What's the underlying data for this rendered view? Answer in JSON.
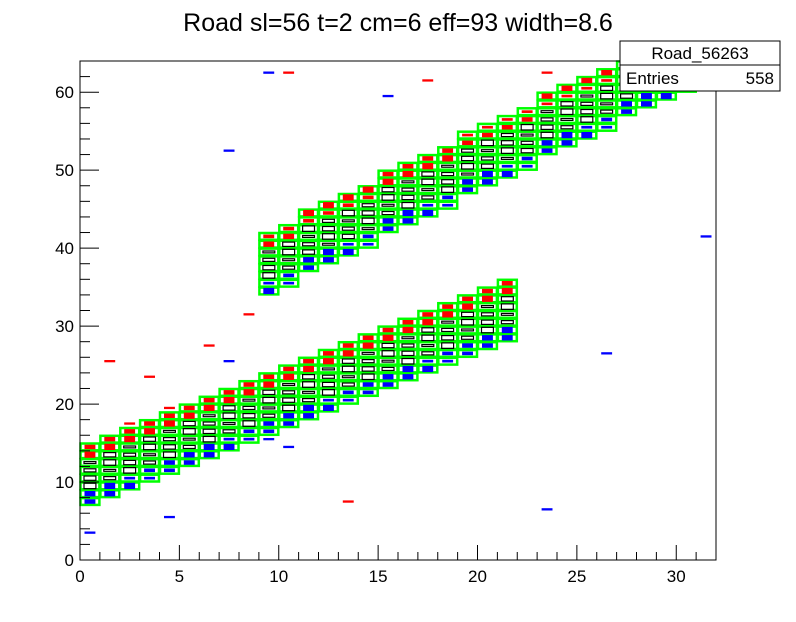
{
  "chart_data": {
    "type": "heatmap",
    "title": "Road sl=56 t=2 cm=6 eff=93 width=8.6",
    "xlabel": "",
    "ylabel": "",
    "xlim": [
      0,
      32
    ],
    "ylim": [
      0,
      64
    ],
    "x_ticks": [
      0,
      5,
      10,
      15,
      20,
      25,
      30
    ],
    "y_ticks": [
      0,
      10,
      20,
      30,
      40,
      50,
      60
    ],
    "grid": false,
    "stats_box": {
      "name": "Road_56263",
      "entries_label": "Entries",
      "entries_value": "558"
    },
    "road_colors": {
      "road": "#00ff00",
      "upper_edge": "#ff0000",
      "lower_edge": "#0000ff",
      "core": "#000000"
    },
    "road_segments": [
      {
        "x_start": 0,
        "x_end": 22,
        "y_start": 6.5,
        "slope": 1.0
      },
      {
        "x_start": 9,
        "x_end": 32,
        "y_start": 34,
        "slope": 1.25
      }
    ],
    "stray_hits": {
      "red": [
        [
          10.5,
          62.5
        ],
        [
          17.5,
          61.5
        ],
        [
          23.5,
          62.5
        ],
        [
          8.5,
          31.5
        ],
        [
          13.5,
          7.5
        ],
        [
          3.5,
          23.5
        ],
        [
          6.5,
          27.5
        ],
        [
          1.5,
          25.5
        ],
        [
          2.5,
          17.5
        ],
        [
          4.5,
          19.5
        ]
      ],
      "blue": [
        [
          9.5,
          62.5
        ],
        [
          15.5,
          59.5
        ],
        [
          7.5,
          52.5
        ],
        [
          4.5,
          5.5
        ],
        [
          23.5,
          6.5
        ],
        [
          26.5,
          26.5
        ],
        [
          31.5,
          41.5
        ],
        [
          9.5,
          15.5
        ],
        [
          10.5,
          14.5
        ],
        [
          7.5,
          25.5
        ],
        [
          0.5,
          3.5
        ]
      ]
    }
  }
}
